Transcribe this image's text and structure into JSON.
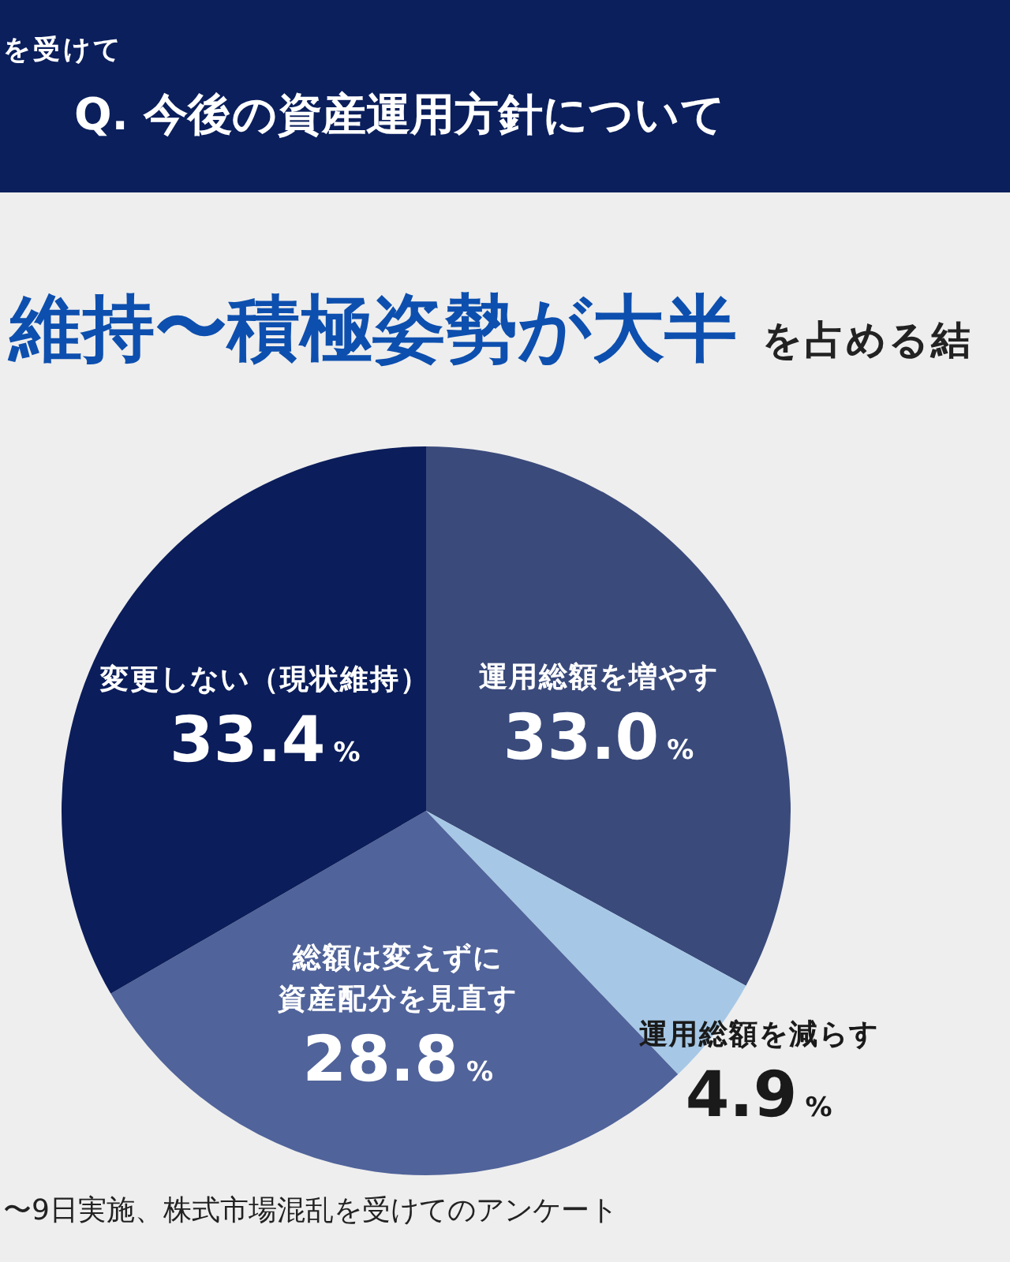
{
  "chart_data": {
    "type": "pie",
    "title": "Q. 今後の資産運用方針について",
    "subtitle": "維持〜積極姿勢が大半",
    "annotations": [
      "を受けて",
      "を占める結",
      "〜9日実施、株式市場混乱を受けてのアンケート"
    ],
    "categories": [
      "運用総額を増やす",
      "運用総額を減らす",
      "総額は変えずに資産配分を見直す",
      "変更しない（現状維持）"
    ],
    "values": [
      33.0,
      4.9,
      28.8,
      33.4
    ],
    "colors": [
      "#3a4a7b",
      "#a6c8e6",
      "#50639a",
      "#0b1d5a"
    ],
    "value_labels": [
      "33.0%",
      "4.9%",
      "28.8%",
      "33.4%"
    ]
  }
}
